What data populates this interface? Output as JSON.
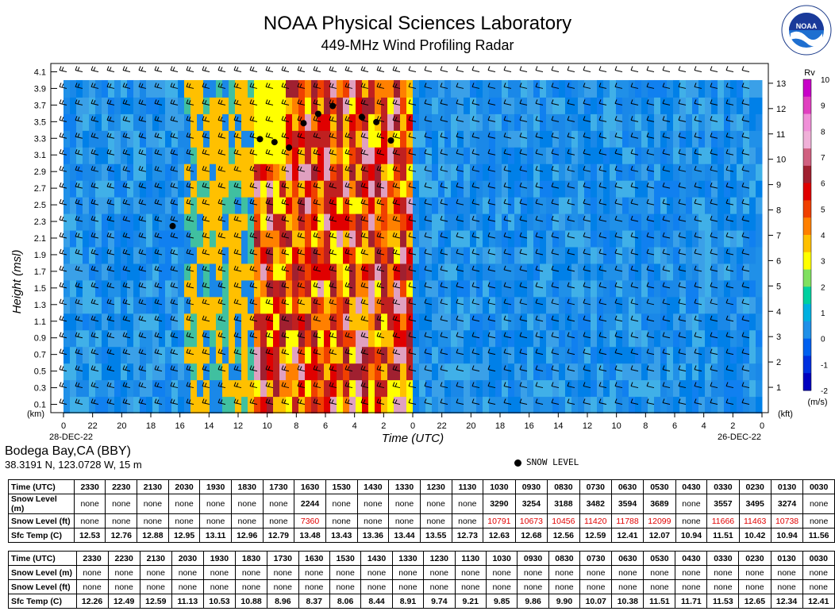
{
  "title": "NOAA Physical Sciences Laboratory",
  "subtitle": "449-MHz Wind Profiling Radar",
  "logo_text": "NOAA",
  "logo_ring_text": "NATIONAL OCEANIC AND ATMOSPHERIC ADMINISTRATION · U.S. DEPARTMENT OF COMMERCE",
  "station": {
    "name": "Bodega Bay,CA (BBY)",
    "coords": "38.3191 N, 123.0728 W, 15 m"
  },
  "snow_legend_label": "SNOW LEVEL",
  "chart_data": {
    "type": "heatmap",
    "xlabel": "Time (UTC)",
    "ylabel": "Height (msl)",
    "y_unit_left": "(km)",
    "y_unit_right": "(kft)",
    "x_ticks": [
      "0",
      "22",
      "20",
      "18",
      "16",
      "14",
      "12",
      "10",
      "8",
      "6",
      "4",
      "2",
      "0",
      "22",
      "20",
      "18",
      "16",
      "14",
      "12",
      "10",
      "8",
      "6",
      "4",
      "2",
      "0"
    ],
    "x_dates": [
      "28-DEC-22",
      "26-DEC-22"
    ],
    "y_ticks_km": [
      "0.1",
      "0.3",
      "0.5",
      "0.7",
      "0.9",
      "1.1",
      "1.3",
      "1.5",
      "1.7",
      "1.9",
      "2.1",
      "2.3",
      "2.5",
      "2.7",
      "2.9",
      "3.1",
      "3.3",
      "3.5",
      "3.7",
      "3.9",
      "4.1"
    ],
    "y_ticks_kft": [
      "1",
      "2",
      "3",
      "4",
      "5",
      "6",
      "7",
      "8",
      "9",
      "10",
      "11",
      "12",
      "13"
    ],
    "ylim_km": [
      0,
      4.2
    ],
    "x_range_hours": [
      0,
      48
    ],
    "colorbar": {
      "label": "Rv",
      "unit": "(m/s)",
      "ticks": [
        "10",
        "9",
        "8",
        "7",
        "6",
        "5",
        "4",
        "3",
        "2",
        "1",
        "0",
        "-1",
        "-2"
      ],
      "colors": [
        "#c800c8",
        "#e040c0",
        "#f090d8",
        "#f0b0d8",
        "#d06080",
        "#a02030",
        "#e00000",
        "#f04000",
        "#ff8000",
        "#ffc000",
        "#ffff00",
        "#80e060",
        "#00d0a0",
        "#00b0e0",
        "#2090e8",
        "#0060f0",
        "#0030e0",
        "#0000c0"
      ]
    },
    "snow_level_points": [
      {
        "hours_before_end": 16.5,
        "km": 2.244
      },
      {
        "hours_before_end": 10.5,
        "km": 3.29
      },
      {
        "hours_before_end": 9.5,
        "km": 3.254
      },
      {
        "hours_before_end": 8.5,
        "km": 3.188
      },
      {
        "hours_before_end": 7.5,
        "km": 3.482
      },
      {
        "hours_before_end": 6.5,
        "km": 3.594
      },
      {
        "hours_before_end": 5.5,
        "km": 3.689
      },
      {
        "hours_before_end": 3.5,
        "km": 3.557
      },
      {
        "hours_before_end": 2.5,
        "km": 3.495
      },
      {
        "hours_before_end": 1.5,
        "km": 3.274
      }
    ]
  },
  "tables": [
    {
      "rows": [
        {
          "head": "Time (UTC)",
          "kind": "hdr",
          "cells": [
            "2330",
            "2230",
            "2130",
            "2030",
            "1930",
            "1830",
            "1730",
            "1630",
            "1530",
            "1430",
            "1330",
            "1230",
            "1130",
            "1030",
            "0930",
            "0830",
            "0730",
            "0630",
            "0530",
            "0430",
            "0330",
            "0230",
            "0130",
            "0030"
          ]
        },
        {
          "head": "Snow Level (m)",
          "kind": "snowm",
          "cells": [
            "none",
            "none",
            "none",
            "none",
            "none",
            "none",
            "none",
            "2244",
            "none",
            "none",
            "none",
            "none",
            "none",
            "3290",
            "3254",
            "3188",
            "3482",
            "3594",
            "3689",
            "none",
            "3557",
            "3495",
            "3274",
            "none"
          ]
        },
        {
          "head": "Snow Level (ft)",
          "kind": "snowft",
          "cells": [
            "none",
            "none",
            "none",
            "none",
            "none",
            "none",
            "none",
            "7360",
            "none",
            "none",
            "none",
            "none",
            "none",
            "10791",
            "10673",
            "10456",
            "11420",
            "11788",
            "12099",
            "none",
            "11666",
            "11463",
            "10738",
            "none"
          ]
        },
        {
          "head": "Sfc Temp (C)",
          "kind": "temp",
          "cells": [
            "12.53",
            "12.76",
            "12.88",
            "12.95",
            "13.11",
            "12.96",
            "12.79",
            "13.48",
            "13.43",
            "13.36",
            "13.44",
            "13.55",
            "12.73",
            "12.63",
            "12.68",
            "12.56",
            "12.59",
            "12.41",
            "12.07",
            "10.94",
            "11.51",
            "10.42",
            "10.94",
            "11.56"
          ]
        }
      ]
    },
    {
      "rows": [
        {
          "head": "Time (UTC)",
          "kind": "hdr",
          "cells": [
            "2330",
            "2230",
            "2130",
            "2030",
            "1930",
            "1830",
            "1730",
            "1630",
            "1530",
            "1430",
            "1330",
            "1230",
            "1130",
            "1030",
            "0930",
            "0830",
            "0730",
            "0630",
            "0530",
            "0430",
            "0330",
            "0230",
            "0130",
            "0030"
          ]
        },
        {
          "head": "Snow Level (m)",
          "kind": "snowm",
          "cells": [
            "none",
            "none",
            "none",
            "none",
            "none",
            "none",
            "none",
            "none",
            "none",
            "none",
            "none",
            "none",
            "none",
            "none",
            "none",
            "none",
            "none",
            "none",
            "none",
            "none",
            "none",
            "none",
            "none",
            "none"
          ]
        },
        {
          "head": "Snow Level (ft)",
          "kind": "snowft",
          "cells": [
            "none",
            "none",
            "none",
            "none",
            "none",
            "none",
            "none",
            "none",
            "none",
            "none",
            "none",
            "none",
            "none",
            "none",
            "none",
            "none",
            "none",
            "none",
            "none",
            "none",
            "none",
            "none",
            "none",
            "none"
          ]
        },
        {
          "head": "Sfc Temp (C)",
          "kind": "temp",
          "cells": [
            "12.26",
            "12.49",
            "12.59",
            "11.13",
            "10.53",
            "10.88",
            "8.96",
            "8.37",
            "8.06",
            "8.44",
            "8.91",
            "9.74",
            "9.21",
            "9.85",
            "9.86",
            "9.90",
            "10.07",
            "10.38",
            "11.51",
            "11.71",
            "11.53",
            "12.65",
            "12.34",
            "12.41"
          ]
        }
      ]
    }
  ]
}
